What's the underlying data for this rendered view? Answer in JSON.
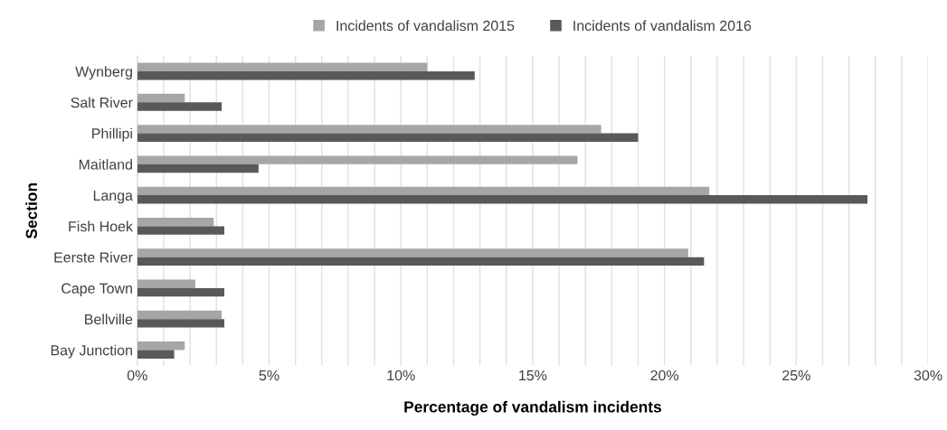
{
  "chart_data": {
    "type": "bar",
    "orientation": "horizontal",
    "xlabel": "Percentage of vandalism incidents",
    "ylabel": "Section",
    "categories": [
      "Wynberg",
      "Salt River",
      "Phillipi",
      "Maitland",
      "Langa",
      "Fish Hoek",
      "Eerste River",
      "Cape Town",
      "Bellville",
      "Bay Junction"
    ],
    "series": [
      {
        "name": "Incidents of vandalism 2015",
        "color": "#a6a6a6",
        "values": [
          11.0,
          1.8,
          17.6,
          16.7,
          21.7,
          2.9,
          20.9,
          2.2,
          3.2,
          1.8
        ]
      },
      {
        "name": "Incidents of vandalism 2016",
        "color": "#595959",
        "values": [
          12.8,
          3.2,
          19.0,
          4.6,
          27.7,
          3.3,
          21.5,
          3.3,
          3.3,
          1.4
        ]
      }
    ],
    "xlim": [
      0,
      30
    ],
    "xticks": [
      {
        "value": 0,
        "label": "0%"
      },
      {
        "value": 1,
        "label": null
      },
      {
        "value": 2,
        "label": null
      },
      {
        "value": 3,
        "label": null
      },
      {
        "value": 4,
        "label": null
      },
      {
        "value": 5,
        "label": "5%"
      },
      {
        "value": 6,
        "label": null
      },
      {
        "value": 7,
        "label": null
      },
      {
        "value": 8,
        "label": null
      },
      {
        "value": 9,
        "label": null
      },
      {
        "value": 10,
        "label": "10%"
      },
      {
        "value": 11,
        "label": null
      },
      {
        "value": 12,
        "label": null
      },
      {
        "value": 13,
        "label": null
      },
      {
        "value": 14,
        "label": null
      },
      {
        "value": 15,
        "label": "15%"
      },
      {
        "value": 16,
        "label": null
      },
      {
        "value": 17,
        "label": null
      },
      {
        "value": 18,
        "label": null
      },
      {
        "value": 19,
        "label": null
      },
      {
        "value": 20,
        "label": "20%"
      },
      {
        "value": 21,
        "label": null
      },
      {
        "value": 22,
        "label": null
      },
      {
        "value": 23,
        "label": null
      },
      {
        "value": 24,
        "label": null
      },
      {
        "value": 25,
        "label": "25%"
      },
      {
        "value": 26,
        "label": null
      },
      {
        "value": 27,
        "label": null
      },
      {
        "value": 28,
        "label": null
      },
      {
        "value": 29,
        "label": null
      },
      {
        "value": 30,
        "label": "30%"
      }
    ],
    "grid": "x",
    "legend": "top"
  }
}
